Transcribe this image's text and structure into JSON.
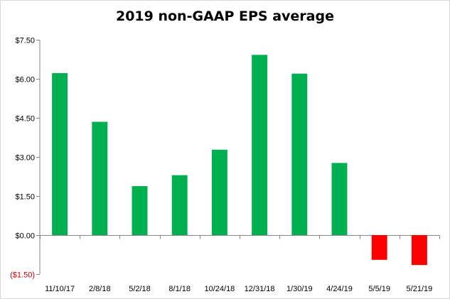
{
  "chart_data": {
    "type": "bar",
    "title": "2019 non-GAAP EPS average",
    "xlabel": "",
    "ylabel": "",
    "categories": [
      "11/10/17",
      "2/8/18",
      "5/2/18",
      "8/1/18",
      "10/24/18",
      "12/31/18",
      "1/30/19",
      "4/24/19",
      "5/5/19",
      "5/21/19"
    ],
    "values": [
      6.22,
      4.35,
      1.88,
      2.3,
      3.28,
      6.92,
      6.2,
      2.77,
      -0.95,
      -1.15
    ],
    "ylim": [
      -1.5,
      7.5
    ],
    "yticks": [
      -1.5,
      0,
      1.5,
      3.0,
      4.5,
      6.0,
      7.5
    ],
    "ytick_labels": [
      "($1.50)",
      "$0.00",
      "$1.50",
      "$3.00",
      "$4.50",
      "$6.00",
      "$7.50"
    ],
    "grid": false,
    "legend": "none",
    "colors": {
      "positive": "#00b050",
      "negative": "#ff0000",
      "negative_tick_label": "#c00000",
      "axis": "#868686"
    }
  }
}
